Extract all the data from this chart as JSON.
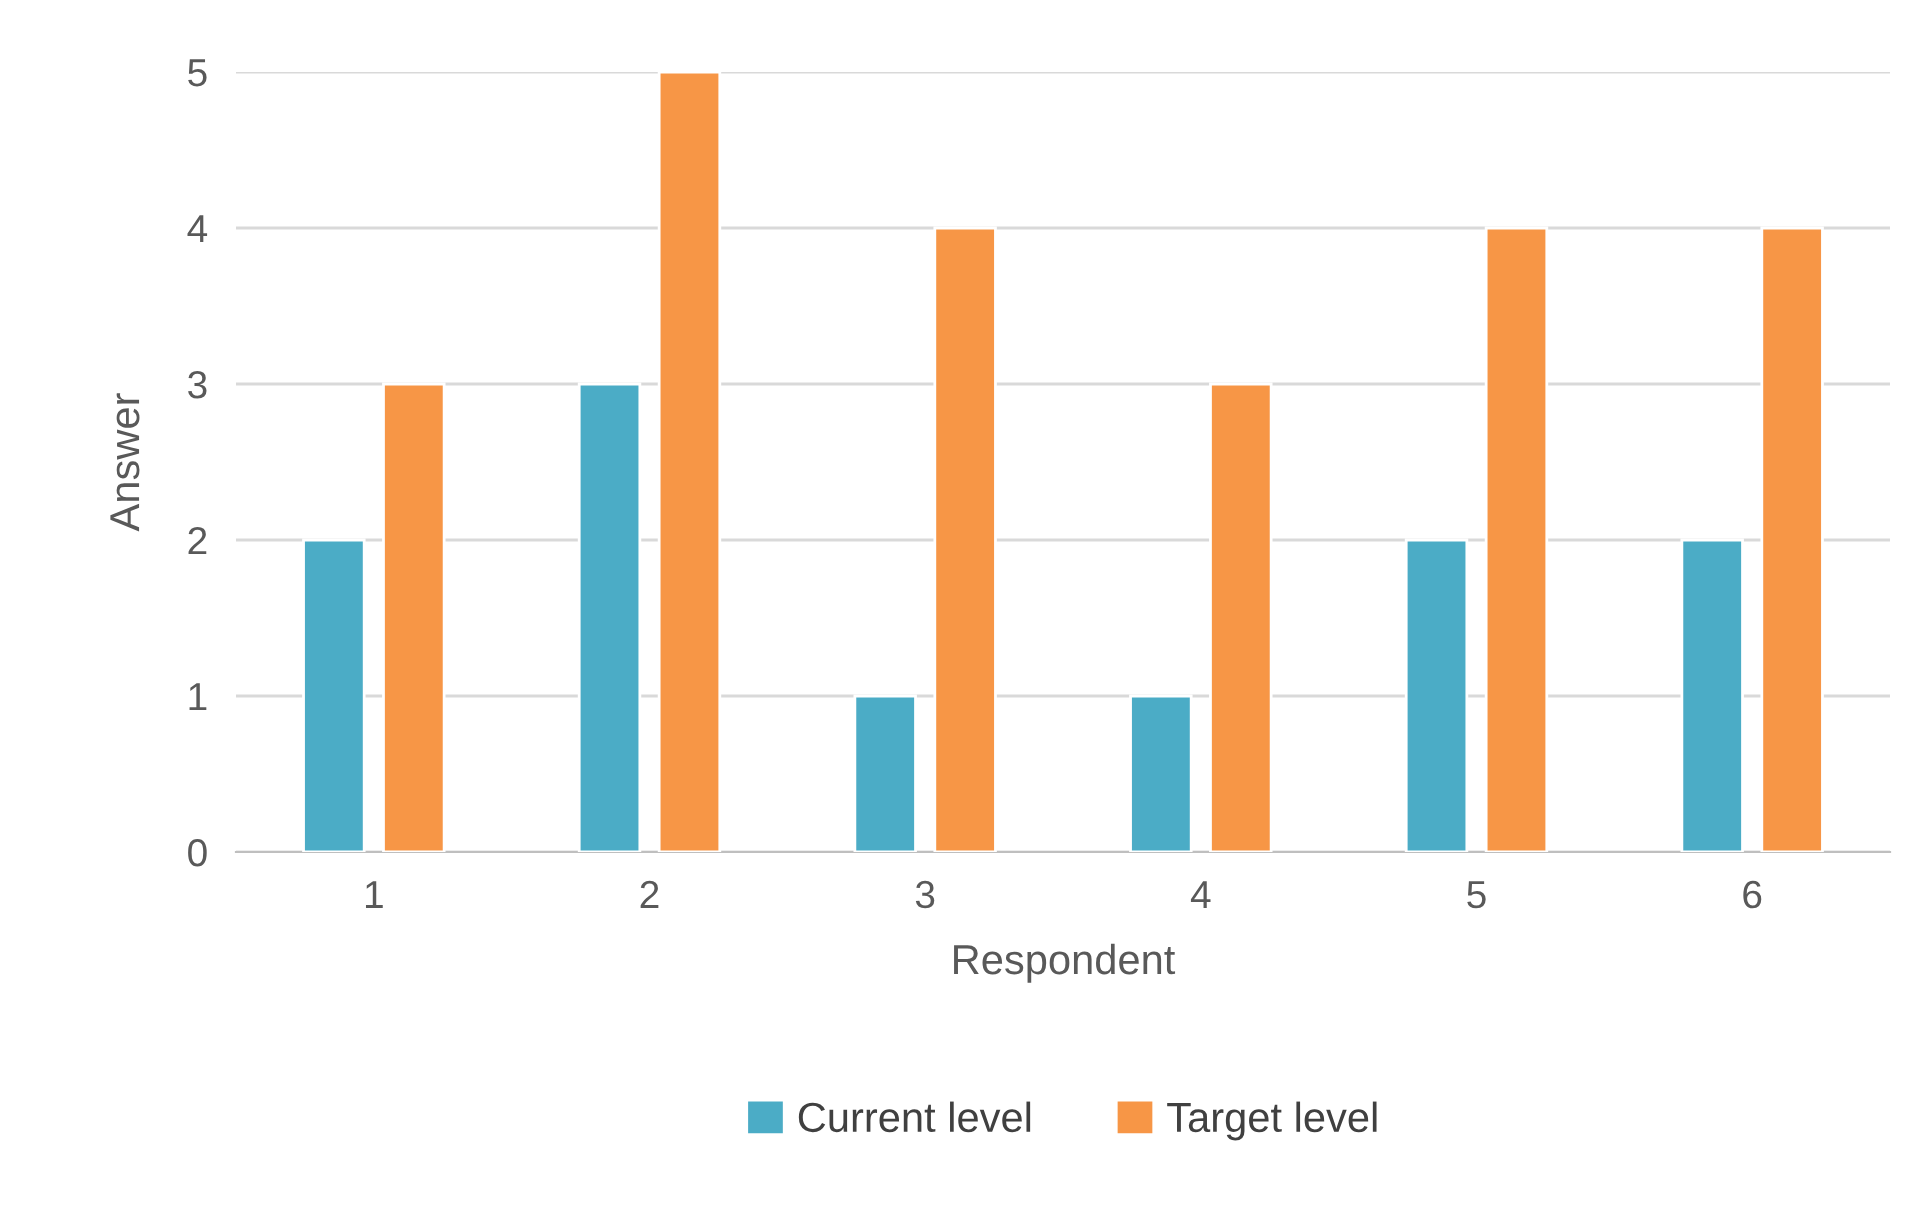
{
  "chart_data": {
    "type": "bar",
    "xlabel": "Respondent",
    "ylabel": "Answer",
    "categories": [
      "1",
      "2",
      "3",
      "4",
      "5",
      "6"
    ],
    "series": [
      {
        "name": "Current level",
        "color": "#4bacc6",
        "values": [
          2,
          3,
          1,
          1,
          2,
          2
        ]
      },
      {
        "name": "Target level",
        "color": "#f79646",
        "values": [
          3,
          5,
          4,
          3,
          4,
          4
        ]
      }
    ],
    "ylim": [
      0,
      5
    ],
    "yticks": [
      0,
      1,
      2,
      3,
      4,
      5
    ],
    "grid": "y",
    "legend": "bottom"
  }
}
